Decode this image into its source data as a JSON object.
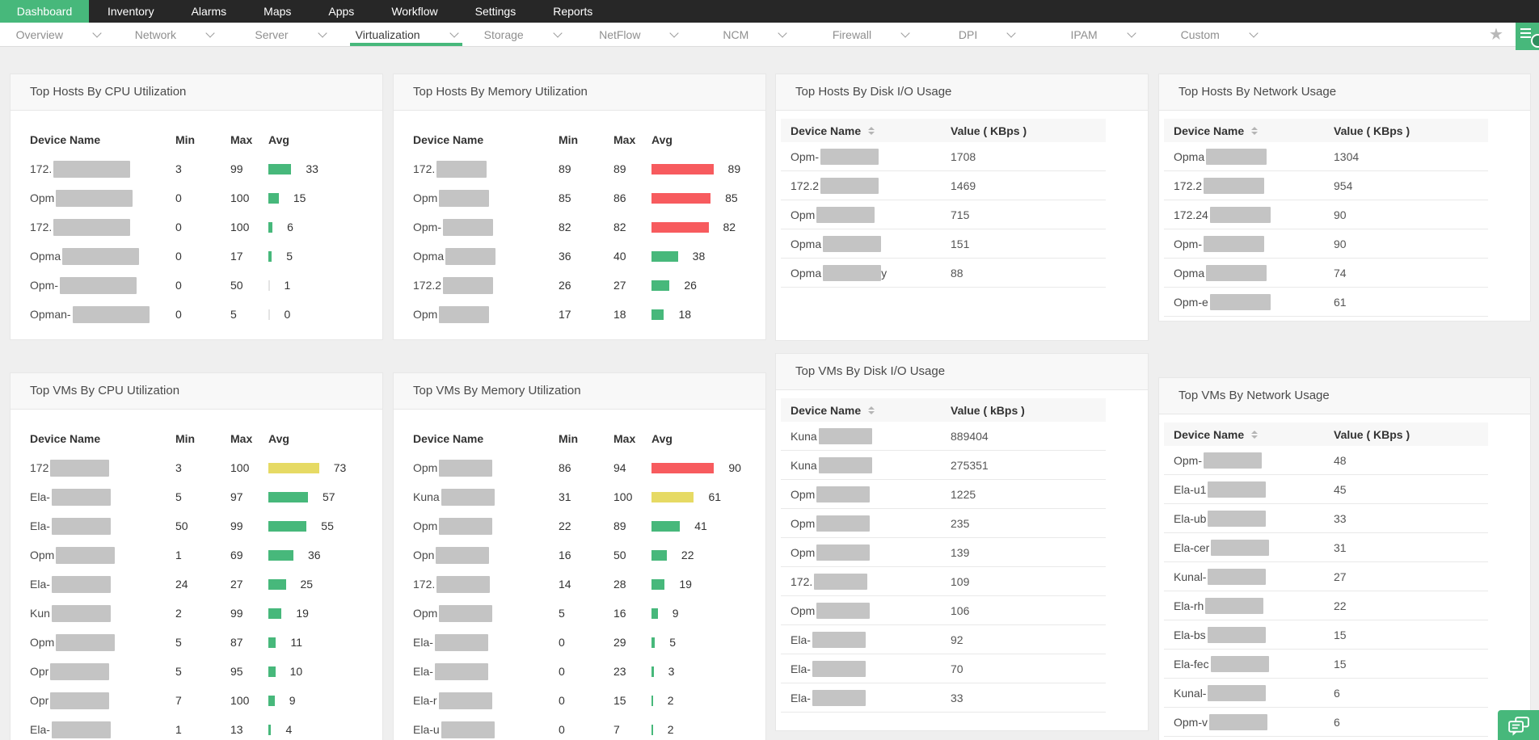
{
  "topnav": {
    "items": [
      {
        "label": "Dashboard",
        "active": true
      },
      {
        "label": "Inventory",
        "active": false
      },
      {
        "label": "Alarms",
        "active": false
      },
      {
        "label": "Maps",
        "active": false
      },
      {
        "label": "Apps",
        "active": false
      },
      {
        "label": "Workflow",
        "active": false
      },
      {
        "label": "Settings",
        "active": false
      },
      {
        "label": "Reports",
        "active": false
      }
    ]
  },
  "subnav": {
    "items": [
      {
        "label": "Overview",
        "active": false
      },
      {
        "label": "Network",
        "active": false
      },
      {
        "label": "Server",
        "active": false
      },
      {
        "label": "Virtualization",
        "active": true
      },
      {
        "label": "Storage",
        "active": false
      },
      {
        "label": "NetFlow",
        "active": false
      },
      {
        "label": "NCM",
        "active": false
      },
      {
        "label": "Firewall",
        "active": false
      },
      {
        "label": "DPI",
        "active": false
      },
      {
        "label": "IPAM",
        "active": false
      },
      {
        "label": "Custom",
        "active": false
      }
    ],
    "star_icon": "favorite-star",
    "menu_icon": "dashboard-menu"
  },
  "colors": {
    "accent_green": "#47b87b",
    "bar_green": "#47b87b",
    "bar_red": "#f75b5e",
    "bar_yellow": "#e6da64",
    "bar_zero": "#e4e4e4",
    "redaction_gray": "#c4c4c4"
  },
  "thresholds": {
    "red_min": 80,
    "yellow_min": 60
  },
  "panels": [
    {
      "id": "hosts-cpu",
      "title": "Top Hosts By CPU Utilization",
      "type": "bars",
      "columns": [
        "Device Name",
        "Min",
        "Max",
        "Avg"
      ],
      "block_w": 95,
      "rows": [
        {
          "prefix": "172.",
          "min": 3,
          "max": 99,
          "avg": 33
        },
        {
          "prefix": "Opm",
          "min": 0,
          "max": 100,
          "avg": 15
        },
        {
          "prefix": "172.",
          "min": 0,
          "max": 100,
          "avg": 6
        },
        {
          "prefix": "Opma",
          "min": 0,
          "max": 17,
          "avg": 5
        },
        {
          "prefix": "Opm-",
          "min": 0,
          "max": 50,
          "avg": 1
        },
        {
          "prefix": "Opman-",
          "min": 0,
          "max": 5,
          "avg": 0
        }
      ]
    },
    {
      "id": "hosts-mem",
      "title": "Top Hosts By Memory Utilization",
      "type": "bars",
      "columns": [
        "Device Name",
        "Min",
        "Max",
        "Avg"
      ],
      "block_w": 62,
      "rows": [
        {
          "prefix": "172.",
          "min": 89,
          "max": 89,
          "avg": 89
        },
        {
          "prefix": "Opm",
          "min": 85,
          "max": 86,
          "avg": 85
        },
        {
          "prefix": "Opm-",
          "min": 82,
          "max": 82,
          "avg": 82
        },
        {
          "prefix": "Opma",
          "min": 36,
          "max": 40,
          "avg": 38
        },
        {
          "prefix": "172.2",
          "min": 26,
          "max": 27,
          "avg": 26
        },
        {
          "prefix": "Opm",
          "min": 17,
          "max": 18,
          "avg": 18
        }
      ]
    },
    {
      "id": "hosts-disk",
      "title": "Top Hosts By Disk I/O Usage",
      "type": "table",
      "columns": [
        "Device Name",
        "Value ( KBps )"
      ],
      "block_w": 72,
      "rows": [
        {
          "prefix": "Opm-",
          "value": 1708
        },
        {
          "prefix": "172.2",
          "value": 1469
        },
        {
          "prefix": "Opm",
          "value": 715
        },
        {
          "prefix": "Opma",
          "value": 151
        },
        {
          "prefix": "Opma",
          "suffix": "y",
          "value": 88
        }
      ]
    },
    {
      "id": "hosts-net",
      "title": "Top Hosts By Network Usage",
      "type": "table",
      "columns": [
        "Device Name",
        "Value ( KBps )"
      ],
      "block_w": 75,
      "rows": [
        {
          "prefix": "Opma",
          "value": 1304
        },
        {
          "prefix": "172.2",
          "value": 954
        },
        {
          "prefix": "172.24",
          "value": 90
        },
        {
          "prefix": "Opm-",
          "value": 90
        },
        {
          "prefix": "Opma",
          "value": 74
        },
        {
          "prefix": "Opm-e",
          "value": 61
        }
      ]
    },
    {
      "id": "vms-cpu",
      "title": "Top VMs By CPU Utilization",
      "type": "bars",
      "columns": [
        "Device Name",
        "Min",
        "Max",
        "Avg"
      ],
      "block_w": 73,
      "rows": [
        {
          "prefix": "172",
          "min": 3,
          "max": 100,
          "avg": 73
        },
        {
          "prefix": "Ela-",
          "min": 5,
          "max": 97,
          "avg": 57
        },
        {
          "prefix": "Ela-",
          "min": 50,
          "max": 99,
          "avg": 55
        },
        {
          "prefix": "Opm",
          "min": 1,
          "max": 69,
          "avg": 36
        },
        {
          "prefix": "Ela-",
          "min": 24,
          "max": 27,
          "avg": 25
        },
        {
          "prefix": "Kun",
          "min": 2,
          "max": 99,
          "avg": 19
        },
        {
          "prefix": "Opm",
          "min": 5,
          "max": 87,
          "avg": 11
        },
        {
          "prefix": "Opr",
          "min": 5,
          "max": 95,
          "avg": 10
        },
        {
          "prefix": "Opr",
          "min": 7,
          "max": 100,
          "avg": 9
        },
        {
          "prefix": "Ela-",
          "min": 1,
          "max": 13,
          "avg": 4
        }
      ]
    },
    {
      "id": "vms-mem",
      "title": "Top VMs By Memory Utilization",
      "type": "bars",
      "columns": [
        "Device Name",
        "Min",
        "Max",
        "Avg"
      ],
      "block_w": 66,
      "rows": [
        {
          "prefix": "Opm",
          "min": 86,
          "max": 94,
          "avg": 90
        },
        {
          "prefix": "Kuna",
          "min": 31,
          "max": 100,
          "avg": 61
        },
        {
          "prefix": "Opm",
          "min": 22,
          "max": 89,
          "avg": 41
        },
        {
          "prefix": "Opn",
          "min": 16,
          "max": 50,
          "avg": 22
        },
        {
          "prefix": "172.",
          "min": 14,
          "max": 28,
          "avg": 19
        },
        {
          "prefix": "Opm",
          "min": 5,
          "max": 16,
          "avg": 9
        },
        {
          "prefix": "Ela-",
          "min": 0,
          "max": 29,
          "avg": 5
        },
        {
          "prefix": "Ela-",
          "min": 0,
          "max": 23,
          "avg": 3
        },
        {
          "prefix": "Ela-r",
          "min": 0,
          "max": 15,
          "avg": 2
        },
        {
          "prefix": "Ela-u",
          "min": 0,
          "max": 7,
          "avg": 2
        }
      ]
    },
    {
      "id": "vms-disk",
      "title": "Top VMs By Disk I/O Usage",
      "type": "table",
      "columns": [
        "Device Name",
        "Value ( kBps )"
      ],
      "block_w": 66,
      "rows": [
        {
          "prefix": "Kuna",
          "value": 889404
        },
        {
          "prefix": "Kuna",
          "value": 275351
        },
        {
          "prefix": "Opm",
          "value": 1225
        },
        {
          "prefix": "Opm",
          "value": 235
        },
        {
          "prefix": "Opm",
          "value": 139
        },
        {
          "prefix": "172.",
          "value": 109
        },
        {
          "prefix": "Opm",
          "value": 106
        },
        {
          "prefix": "Ela-",
          "value": 92
        },
        {
          "prefix": "Ela-",
          "value": 70
        },
        {
          "prefix": "Ela-",
          "value": 33
        }
      ]
    },
    {
      "id": "vms-net",
      "title": "Top VMs By Network Usage",
      "type": "table",
      "columns": [
        "Device Name",
        "Value ( KBps )"
      ],
      "block_w": 72,
      "rows": [
        {
          "prefix": "Opm-",
          "value": 48
        },
        {
          "prefix": "Ela-u1",
          "value": 45
        },
        {
          "prefix": "Ela-ub",
          "value": 33
        },
        {
          "prefix": "Ela-cer",
          "value": 31
        },
        {
          "prefix": "Kunal-",
          "value": 27
        },
        {
          "prefix": "Ela-rh",
          "value": 22
        },
        {
          "prefix": "Ela-bs",
          "value": 15
        },
        {
          "prefix": "Ela-fec",
          "value": 15
        },
        {
          "prefix": "Kunal-",
          "value": 6
        },
        {
          "prefix": "Opm-v",
          "value": 6
        }
      ]
    }
  ],
  "chat_button": {
    "icon": "chat-bubbles-icon"
  }
}
